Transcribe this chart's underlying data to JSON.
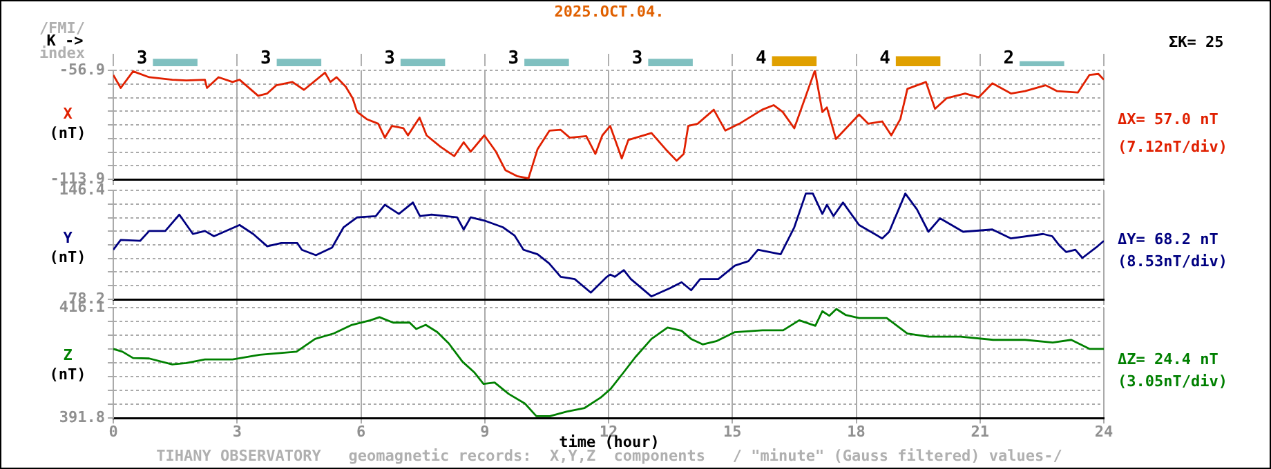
{
  "chart_data": [
    {
      "type": "bar",
      "title": "2025.OCT.04.",
      "ylabel": "K ->",
      "categories": [
        null,
        null,
        null,
        null,
        null,
        null,
        null,
        null
      ],
      "values": [
        3,
        3,
        3,
        3,
        3,
        4,
        4,
        2
      ],
      "colors": [
        "#80c0c0",
        "#80c0c0",
        "#80c0c0",
        "#80c0c0",
        "#80c0c0",
        "#e0a000",
        "#e0a000",
        "#80c0c0"
      ],
      "data_labels": true,
      "grid": "x",
      "tick_labels": false,
      "annotations": [
        "/FMI/",
        "index",
        "ΣK= 25"
      ]
    },
    {
      "type": "line",
      "ylabel": "X (nT)",
      "tick_labels": "y",
      "grid": true,
      "x": [
        0,
        0.18,
        0.48,
        0.87,
        1.43,
        1.77,
        2.22,
        2.27,
        2.55,
        2.89,
        3.06,
        3.51,
        3.73,
        3.95,
        4.34,
        4.62,
        5.13,
        5.26,
        5.41,
        5.63,
        5.8,
        5.91,
        6.14,
        6.42,
        6.58,
        6.75,
        7.03,
        7.14,
        7.42,
        7.59,
        7.93,
        8.26,
        8.49,
        8.66,
        8.99,
        9.27,
        9.5,
        9.78,
        10.06,
        10.28,
        10.57,
        10.84,
        11.06,
        11.46,
        11.68,
        11.85,
        12.04,
        12.32,
        12.48,
        13.04,
        13.38,
        13.65,
        13.82,
        13.93,
        14.16,
        14.55,
        14.83,
        15.17,
        15.72,
        16,
        16.22,
        16.5,
        16.84,
        17,
        17.18,
        17.29,
        17.51,
        18.07,
        18.29,
        18.63,
        18.85,
        19.07,
        19.24,
        19.69,
        19.91,
        20.19,
        20.64,
        20.97,
        21.3,
        21.75,
        22.09,
        22.59,
        22.87,
        23.37,
        23.65,
        23.87,
        24
      ],
      "series": [
        {
          "color": "#e02000",
          "values": [
            -59.3,
            -66.1,
            -57.4,
            -60.5,
            -61.8,
            -62.2,
            -61.8,
            -66.1,
            -60.5,
            -63.0,
            -61.8,
            -70.2,
            -69.0,
            -64.7,
            -63.0,
            -67.1,
            -58.1,
            -63.0,
            -60.5,
            -65.4,
            -71.5,
            -78.7,
            -82.4,
            -84.8,
            -92.1,
            -86.0,
            -87.2,
            -90.9,
            -81.6,
            -90.9,
            -96.9,
            -101.8,
            -94.5,
            -99.4,
            -90.9,
            -99.4,
            -109.1,
            -112.2,
            -113.4,
            -98.1,
            -88.4,
            -88.0,
            -92.1,
            -91.3,
            -100.6,
            -90.9,
            -86.0,
            -103.0,
            -93.3,
            -89.7,
            -98.1,
            -104.2,
            -100.6,
            -86.0,
            -84.8,
            -77.5,
            -88.4,
            -84.8,
            -77.5,
            -75.1,
            -78.7,
            -87.2,
            -66.6,
            -56.9,
            -78.7,
            -76.3,
            -92.8,
            -80.0,
            -84.8,
            -83.6,
            -90.9,
            -82.4,
            -66.6,
            -63.0,
            -77.0,
            -71.5,
            -69.0,
            -71.0,
            -63.7,
            -69.0,
            -67.8,
            -64.7,
            -67.8,
            -68.5,
            -59.3,
            -58.8,
            -61.8
          ]
        }
      ],
      "xlim": [
        0,
        24
      ],
      "xticks": [
        0,
        3,
        6,
        9,
        12,
        15,
        18,
        21,
        24
      ],
      "ylim": [
        -113.9,
        -56.9
      ],
      "yticks": [
        -113.9,
        {
          "value": -106.8,
          "label": null
        },
        {
          "value": -99.7,
          "label": null
        },
        {
          "value": -92.5,
          "label": null
        },
        {
          "value": -85.4,
          "label": null
        },
        {
          "value": -78.3,
          "label": null
        },
        {
          "value": -71.2,
          "label": null
        },
        {
          "value": -64.0,
          "label": null
        },
        -56.9
      ],
      "annotations": [
        "ΔX= 57.0 nT",
        "(7.12nT/div)"
      ]
    },
    {
      "type": "line",
      "ylabel": "Y (nT)",
      "tick_labels": "y",
      "grid": true,
      "x": [
        0,
        0.18,
        0.65,
        0.87,
        1.26,
        1.6,
        1.93,
        2.22,
        2.44,
        3.06,
        3.39,
        3.73,
        4.07,
        4.46,
        4.57,
        4.91,
        5.3,
        5.58,
        5.91,
        6.36,
        6.58,
        6.92,
        7.26,
        7.43,
        7.71,
        8.33,
        8.49,
        8.66,
        8.99,
        9.44,
        9.72,
        9.94,
        10.28,
        10.56,
        10.84,
        11.18,
        11.57,
        11.74,
        11.96,
        12.04,
        12.15,
        12.37,
        12.54,
        13.04,
        13.49,
        13.77,
        14,
        14.22,
        14.66,
        15.06,
        15.39,
        15.62,
        16.17,
        16.5,
        16.78,
        16.95,
        17.18,
        17.29,
        17.45,
        17.68,
        18.07,
        18.63,
        18.8,
        19.19,
        19.47,
        19.75,
        20.03,
        20.59,
        21.3,
        21.75,
        22.53,
        22.75,
        22.92,
        23.09,
        23.31,
        23.48,
        23.81,
        24
      ],
      "series": [
        {
          "color": "#000080",
          "values": [
            109.2,
            115.4,
            114.8,
            121.0,
            121.0,
            131.2,
            119.1,
            121.0,
            117.7,
            124.7,
            119.1,
            111.4,
            113.4,
            113.4,
            109.2,
            105.8,
            110.6,
            123.3,
            129.5,
            130.3,
            137.4,
            131.7,
            138.8,
            130.3,
            131.2,
            129.5,
            121.9,
            129.5,
            127.5,
            123.3,
            118.2,
            109.2,
            106.4,
            100.7,
            92.3,
            90.9,
            82.4,
            86.7,
            92.3,
            93.7,
            92.3,
            96.5,
            90.9,
            80.0,
            85.2,
            88.9,
            83.9,
            90.9,
            90.9,
            99.3,
            102.1,
            109.2,
            106.4,
            123.3,
            144.4,
            144.4,
            131.7,
            137.4,
            130.3,
            138.8,
            124.7,
            116.3,
            120.5,
            144.4,
            134.6,
            120.5,
            128.9,
            120.5,
            121.9,
            116.3,
            119.1,
            117.7,
            112.0,
            107.8,
            109.2,
            104.1,
            110.6,
            114.8
          ]
        }
      ],
      "xlim": [
        0,
        24
      ],
      "xticks": [
        0,
        3,
        6,
        9,
        12,
        15,
        18,
        21,
        24
      ],
      "ylim": [
        78.2,
        146.4
      ],
      "yticks": [
        78.2,
        {
          "value": 86.7,
          "label": null
        },
        {
          "value": 95.3,
          "label": null
        },
        {
          "value": 103.8,
          "label": null
        },
        {
          "value": 112.3,
          "label": null
        },
        {
          "value": 120.8,
          "label": null
        },
        {
          "value": 129.3,
          "label": null
        },
        {
          "value": 137.9,
          "label": null
        },
        146.4
      ],
      "annotations": [
        "ΔY= 68.2 nT",
        "(8.53nT/div)"
      ]
    },
    {
      "type": "line",
      "ylabel": "Z (nT)",
      "xlabel": "time (hour)",
      "grid": true,
      "x": [
        0,
        0.22,
        0.48,
        0.87,
        1.43,
        1.77,
        2.22,
        2.89,
        3.55,
        4.44,
        4.89,
        5.34,
        5.78,
        6.23,
        6.45,
        6.78,
        7.18,
        7.34,
        7.57,
        7.85,
        8.13,
        8.46,
        8.74,
        8.97,
        9.24,
        9.58,
        9.97,
        10.25,
        10.58,
        10.98,
        11.42,
        11.81,
        12.04,
        12.37,
        12.65,
        13.04,
        13.43,
        13.77,
        14,
        14.28,
        14.61,
        15.06,
        15.73,
        16.23,
        16.62,
        17.01,
        17.18,
        17.35,
        17.52,
        17.74,
        18.07,
        18.74,
        19.24,
        19.75,
        20.53,
        21.32,
        22.09,
        22.76,
        23.21,
        23.66,
        24
      ],
      "series": [
        {
          "color": "#008000",
          "values": [
            407.0,
            406.4,
            405.0,
            404.9,
            403.6,
            403.9,
            404.7,
            404.7,
            405.7,
            406.4,
            409.2,
            410.4,
            412.3,
            413.3,
            414.0,
            412.8,
            412.8,
            411.4,
            412.3,
            410.7,
            408.2,
            404.2,
            401.9,
            399.3,
            399.6,
            397.1,
            395.0,
            392.2,
            392.2,
            393.2,
            394.0,
            396.3,
            398.1,
            401.9,
            405.2,
            409.2,
            411.7,
            411.0,
            409.2,
            408.0,
            408.7,
            410.7,
            411.1,
            411.1,
            413.3,
            412.1,
            415.3,
            414.3,
            415.8,
            414.5,
            413.8,
            413.8,
            410.4,
            409.7,
            409.7,
            409.0,
            409.0,
            408.4,
            409.0,
            407.0,
            407.0
          ]
        }
      ],
      "xlim": [
        0,
        24
      ],
      "xticks": [
        0,
        3,
        6,
        9,
        12,
        15,
        18,
        21,
        24
      ],
      "ylim": [
        391.8,
        416.1
      ],
      "yticks": [
        391.8,
        {
          "value": 394.8,
          "label": null
        },
        {
          "value": 397.9,
          "label": null
        },
        {
          "value": 400.9,
          "label": null
        },
        {
          "value": 404.0,
          "label": null
        },
        {
          "value": 407.0,
          "label": null
        },
        {
          "value": 410.0,
          "label": null
        },
        {
          "value": 413.1,
          "label": null
        },
        416.1
      ],
      "annotations": [
        "ΔZ= 24.4 nT",
        "(3.05nT/div)",
        "TIHANY OBSERVATORY   geomagnetic records:  X,Y,Z  components   / \"minute\" (Gauss filtered) values-/"
      ]
    }
  ]
}
